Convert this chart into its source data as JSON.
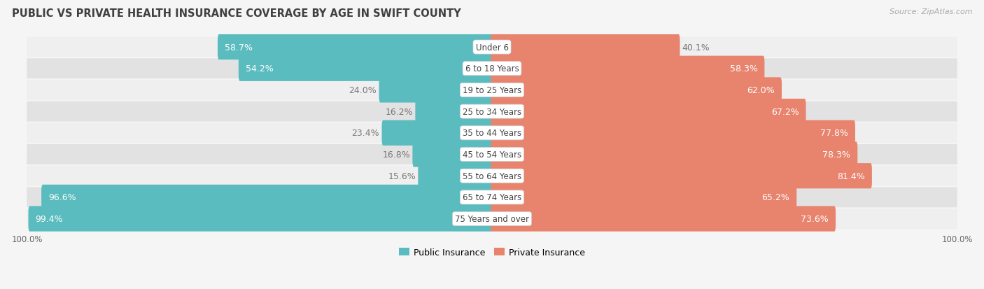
{
  "title": "PUBLIC VS PRIVATE HEALTH INSURANCE COVERAGE BY AGE IN SWIFT COUNTY",
  "source": "Source: ZipAtlas.com",
  "categories": [
    "Under 6",
    "6 to 18 Years",
    "19 to 25 Years",
    "25 to 34 Years",
    "35 to 44 Years",
    "45 to 54 Years",
    "55 to 64 Years",
    "65 to 74 Years",
    "75 Years and over"
  ],
  "public_values": [
    58.7,
    54.2,
    24.0,
    16.2,
    23.4,
    16.8,
    15.6,
    96.6,
    99.4
  ],
  "private_values": [
    40.1,
    58.3,
    62.0,
    67.2,
    77.8,
    78.3,
    81.4,
    65.2,
    73.6
  ],
  "public_color": "#5bbcbf",
  "private_color": "#e8846e",
  "row_bg_color_light": "#efefef",
  "row_bg_color_dark": "#e2e2e2",
  "label_color_white": "#ffffff",
  "label_color_dark": "#777777",
  "title_color": "#404040",
  "source_color": "#aaaaaa",
  "x_max": 100.0,
  "bar_height": 0.58,
  "label_fontsize": 9.0,
  "title_fontsize": 10.5,
  "source_fontsize": 8.0,
  "legend_fontsize": 9,
  "category_fontsize": 8.5,
  "background_color": "#f5f5f5"
}
